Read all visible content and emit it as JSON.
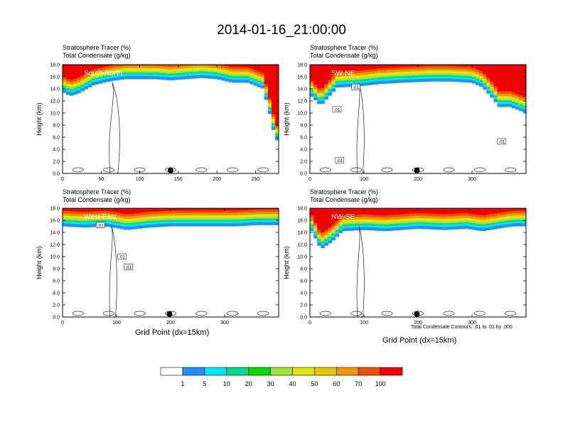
{
  "title": "2014-01-16_21:00:00",
  "panel_labels": {
    "line1": "Stratosphere Tracer   (%)",
    "line2": "Total Condensate   (g/kg)"
  },
  "note": "Total Condensate Contours: .01 to .01 by .000",
  "colors": [
    "#ffffff",
    "#1e90ff",
    "#00e6ff",
    "#00dc8c",
    "#00dc00",
    "#a0e632",
    "#e6e600",
    "#e6c800",
    "#f09600",
    "#f05000",
    "#f00000"
  ],
  "chart_data": [
    {
      "type": "heatmap",
      "name": "South-North",
      "xlabel": "",
      "ylabel": "Height (km)",
      "xlim": [
        0,
        280
      ],
      "ylim": [
        0,
        18
      ],
      "xticks": [
        0,
        50,
        100,
        150,
        200,
        250
      ],
      "yticks": [
        "0.0",
        "2.0",
        "4.0",
        "6.0",
        "8.0",
        "10.0",
        "12.0",
        "14.0",
        "16.0",
        "18.0"
      ],
      "tracer_profile": {
        "x": [
          0,
          10,
          20,
          40,
          60,
          80,
          100,
          120,
          140,
          160,
          180,
          200,
          220,
          240,
          260,
          270,
          275,
          280
        ],
        "base_km": [
          13.5,
          12.8,
          13.2,
          14.6,
          15.2,
          15.6,
          15.6,
          15.6,
          15.4,
          15.6,
          15.8,
          15.6,
          15.0,
          15.0,
          14.0,
          9.0,
          6.0,
          5.0
        ]
      },
      "contour_labels": [],
      "marker_x": 140
    },
    {
      "type": "heatmap",
      "name": "SW-NE",
      "xlabel": "",
      "ylabel": "Height (km)",
      "xlim": [
        0,
        400
      ],
      "ylim": [
        0,
        18
      ],
      "xticks": [
        0,
        100,
        200,
        300
      ],
      "yticks": [
        "0.0",
        "2.0",
        "4.0",
        "6.0",
        "8.0",
        "10.0",
        "12.0",
        "14.0",
        "16.0",
        "18.0"
      ],
      "tracer_profile": {
        "x": [
          0,
          20,
          50,
          90,
          130,
          170,
          220,
          260,
          300,
          320,
          340,
          350,
          370,
          400
        ],
        "base_km": [
          13.0,
          11.2,
          14.2,
          14.4,
          14.8,
          15.0,
          15.2,
          15.2,
          15.0,
          14.2,
          12.2,
          11.0,
          11.0,
          10.0
        ]
      },
      "contour_labels": [
        {
          "text": ".01",
          "x": 50,
          "y": 10.6
        },
        {
          "text": ".01",
          "x": 85,
          "y": 14.3
        },
        {
          "text": ".01",
          "x": 55,
          "y": 2.2
        },
        {
          "text": ".01",
          "x": 355,
          "y": 5.3
        }
      ],
      "marker_x": 198
    },
    {
      "type": "heatmap",
      "name": "West-East",
      "xlabel": "Grid Point (dx=15km)",
      "ylabel": "Height (km)",
      "xlim": [
        0,
        400
      ],
      "ylim": [
        0,
        18
      ],
      "xticks": [
        0,
        100,
        200,
        300
      ],
      "yticks": [
        "0.0",
        "2.0",
        "4.0",
        "6.0",
        "8.0",
        "10.0",
        "12.0",
        "14.0",
        "16.0",
        "18.0"
      ],
      "tracer_profile": {
        "x": [
          0,
          40,
          80,
          120,
          160,
          200,
          240,
          280,
          320,
          360,
          400
        ],
        "base_km": [
          15.0,
          14.8,
          15.0,
          14.4,
          14.8,
          15.0,
          15.0,
          15.0,
          15.0,
          15.2,
          15.2
        ]
      },
      "contour_labels": [
        {
          "text": ".01",
          "x": 70,
          "y": 15.2
        },
        {
          "text": ".01",
          "x": 110,
          "y": 10.0
        },
        {
          "text": ".01",
          "x": 122,
          "y": 8.3
        }
      ],
      "marker_x": 198
    },
    {
      "type": "heatmap",
      "name": "NW-SE",
      "xlabel": "Grid Point (dx=15km)",
      "ylabel": "Height (km)",
      "xlim": [
        0,
        400
      ],
      "ylim": [
        0,
        18
      ],
      "xticks": [
        0,
        100,
        200,
        300
      ],
      "yticks": [
        "0.0",
        "2.0",
        "4.0",
        "6.0",
        "8.0",
        "10.0",
        "12.0",
        "14.0",
        "16.0",
        "18.0"
      ],
      "tracer_profile": {
        "x": [
          0,
          20,
          40,
          60,
          100,
          140,
          200,
          250,
          290,
          320,
          360,
          380,
          400
        ],
        "base_km": [
          14.8,
          11.2,
          12.4,
          14.2,
          14.4,
          14.2,
          14.6,
          14.4,
          14.6,
          14.2,
          14.8,
          15.0,
          15.0
        ]
      },
      "contour_labels": [],
      "marker_x": 198
    }
  ],
  "colorbar": {
    "labels": [
      "1",
      "5",
      "10",
      "20",
      "30",
      "40",
      "50",
      "60",
      "70",
      "100"
    ]
  }
}
